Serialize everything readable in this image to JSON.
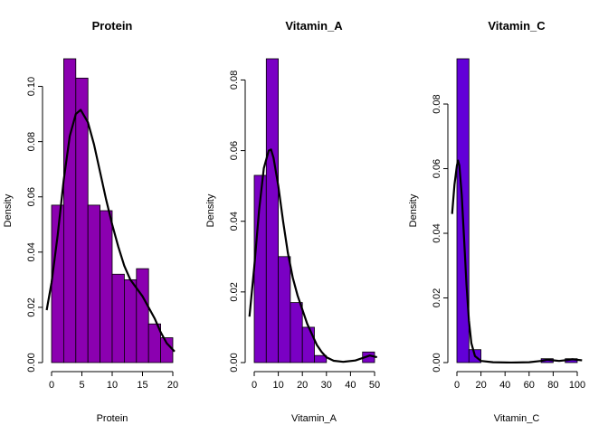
{
  "chart_data": [
    {
      "type": "bar",
      "title": "Protein",
      "xlabel": "Protein",
      "ylabel": "Density",
      "bar_color": "#8B00B0",
      "curve_color": "#000000",
      "xlim": [
        0,
        20
      ],
      "ylim": [
        0,
        0.11
      ],
      "xticks": [
        0,
        5,
        10,
        15,
        20
      ],
      "xtick_labels": [
        "0",
        "5",
        "10",
        "15",
        "20"
      ],
      "yticks": [
        0.0,
        0.02,
        0.04,
        0.06,
        0.08,
        0.1
      ],
      "ytick_labels": [
        "0.00",
        "0.02",
        "0.04",
        "0.06",
        "0.08",
        "0.10"
      ],
      "bins": [
        {
          "x0": 0,
          "x1": 2,
          "density": 0.057
        },
        {
          "x0": 2,
          "x1": 4,
          "density": 0.11
        },
        {
          "x0": 4,
          "x1": 6,
          "density": 0.103
        },
        {
          "x0": 6,
          "x1": 8,
          "density": 0.057
        },
        {
          "x0": 8,
          "x1": 10,
          "density": 0.055
        },
        {
          "x0": 10,
          "x1": 12,
          "density": 0.032
        },
        {
          "x0": 12,
          "x1": 14,
          "density": 0.03
        },
        {
          "x0": 14,
          "x1": 16,
          "density": 0.034
        },
        {
          "x0": 16,
          "x1": 18,
          "density": 0.014
        },
        {
          "x0": 18,
          "x1": 20,
          "density": 0.009
        }
      ],
      "density_curve": [
        [
          -0.8,
          0.019
        ],
        [
          0,
          0.029
        ],
        [
          1,
          0.046
        ],
        [
          2,
          0.066
        ],
        [
          3,
          0.082
        ],
        [
          4,
          0.09
        ],
        [
          4.8,
          0.0915
        ],
        [
          6,
          0.087
        ],
        [
          7,
          0.079
        ],
        [
          8,
          0.069
        ],
        [
          9,
          0.059
        ],
        [
          10,
          0.05
        ],
        [
          11,
          0.042
        ],
        [
          12,
          0.035
        ],
        [
          13,
          0.03
        ],
        [
          14,
          0.027
        ],
        [
          15,
          0.024
        ],
        [
          16,
          0.02
        ],
        [
          17,
          0.016
        ],
        [
          18,
          0.011
        ],
        [
          19,
          0.007
        ],
        [
          20.3,
          0.004
        ]
      ]
    },
    {
      "type": "bar",
      "title": "Vitamin_A",
      "xlabel": "Vitamin_A",
      "ylabel": "Density",
      "bar_color": "#7A00C4",
      "curve_color": "#000000",
      "xlim": [
        0,
        50
      ],
      "ylim": [
        0,
        0.086
      ],
      "xticks": [
        0,
        10,
        20,
        30,
        40,
        50
      ],
      "xtick_labels": [
        "0",
        "10",
        "20",
        "30",
        "40",
        "50"
      ],
      "yticks": [
        0.0,
        0.02,
        0.04,
        0.06,
        0.08
      ],
      "ytick_labels": [
        "0.00",
        "0.02",
        "0.04",
        "0.06",
        "0.08"
      ],
      "bins": [
        {
          "x0": 0,
          "x1": 5,
          "density": 0.053
        },
        {
          "x0": 5,
          "x1": 10,
          "density": 0.086
        },
        {
          "x0": 10,
          "x1": 15,
          "density": 0.03
        },
        {
          "x0": 15,
          "x1": 20,
          "density": 0.017
        },
        {
          "x0": 20,
          "x1": 25,
          "density": 0.01
        },
        {
          "x0": 25,
          "x1": 30,
          "density": 0.002
        },
        {
          "x0": 30,
          "x1": 35,
          "density": 0.0
        },
        {
          "x0": 35,
          "x1": 40,
          "density": 0.0
        },
        {
          "x0": 40,
          "x1": 45,
          "density": 0.0
        },
        {
          "x0": 45,
          "x1": 50,
          "density": 0.003
        }
      ],
      "density_curve": [
        [
          -2,
          0.013
        ],
        [
          0,
          0.027
        ],
        [
          2,
          0.043
        ],
        [
          4,
          0.055
        ],
        [
          6,
          0.06
        ],
        [
          7,
          0.0603
        ],
        [
          8,
          0.058
        ],
        [
          10,
          0.05
        ],
        [
          12,
          0.04
        ],
        [
          14,
          0.031
        ],
        [
          16,
          0.024
        ],
        [
          18,
          0.019
        ],
        [
          20,
          0.015
        ],
        [
          22,
          0.011
        ],
        [
          24,
          0.008
        ],
        [
          26,
          0.005
        ],
        [
          28,
          0.003
        ],
        [
          30,
          0.0015
        ],
        [
          33,
          0.0005
        ],
        [
          37,
          0.0002
        ],
        [
          42,
          0.0006
        ],
        [
          46,
          0.0015
        ],
        [
          48,
          0.002
        ],
        [
          51,
          0.0015
        ]
      ]
    },
    {
      "type": "bar",
      "title": "Vitamin_C",
      "xlabel": "Vitamin_C",
      "ylabel": "Density",
      "bar_color": "#6200D8",
      "curve_color": "#000000",
      "xlim": [
        0,
        100
      ],
      "ylim": [
        0,
        0.094
      ],
      "xticks": [
        0,
        20,
        40,
        60,
        80,
        100
      ],
      "xtick_labels": [
        "0",
        "20",
        "40",
        "60",
        "80",
        "100"
      ],
      "yticks": [
        0.0,
        0.02,
        0.04,
        0.06,
        0.08
      ],
      "ytick_labels": [
        "0.00",
        "0.02",
        "0.04",
        "0.06",
        "0.08"
      ],
      "bins": [
        {
          "x0": 0,
          "x1": 10,
          "density": 0.094
        },
        {
          "x0": 10,
          "x1": 20,
          "density": 0.004
        },
        {
          "x0": 20,
          "x1": 30,
          "density": 0.0
        },
        {
          "x0": 30,
          "x1": 40,
          "density": 0.0
        },
        {
          "x0": 40,
          "x1": 50,
          "density": 0.0
        },
        {
          "x0": 50,
          "x1": 60,
          "density": 0.0
        },
        {
          "x0": 60,
          "x1": 70,
          "density": 0.0
        },
        {
          "x0": 70,
          "x1": 80,
          "density": 0.0012
        },
        {
          "x0": 80,
          "x1": 90,
          "density": 0.0
        },
        {
          "x0": 90,
          "x1": 100,
          "density": 0.0012
        }
      ],
      "density_curve": [
        [
          -4,
          0.046
        ],
        [
          -2,
          0.055
        ],
        [
          0,
          0.061
        ],
        [
          1,
          0.0625
        ],
        [
          2,
          0.061
        ],
        [
          4,
          0.052
        ],
        [
          6,
          0.038
        ],
        [
          8,
          0.024
        ],
        [
          10,
          0.013
        ],
        [
          12,
          0.006
        ],
        [
          15,
          0.002
        ],
        [
          20,
          0.0005
        ],
        [
          30,
          0.0001
        ],
        [
          45,
          0.0
        ],
        [
          60,
          0.0001
        ],
        [
          70,
          0.0005
        ],
        [
          75,
          0.0009
        ],
        [
          80,
          0.0007
        ],
        [
          85,
          0.0005
        ],
        [
          92,
          0.0008
        ],
        [
          96,
          0.001
        ],
        [
          104,
          0.0007
        ]
      ]
    }
  ]
}
